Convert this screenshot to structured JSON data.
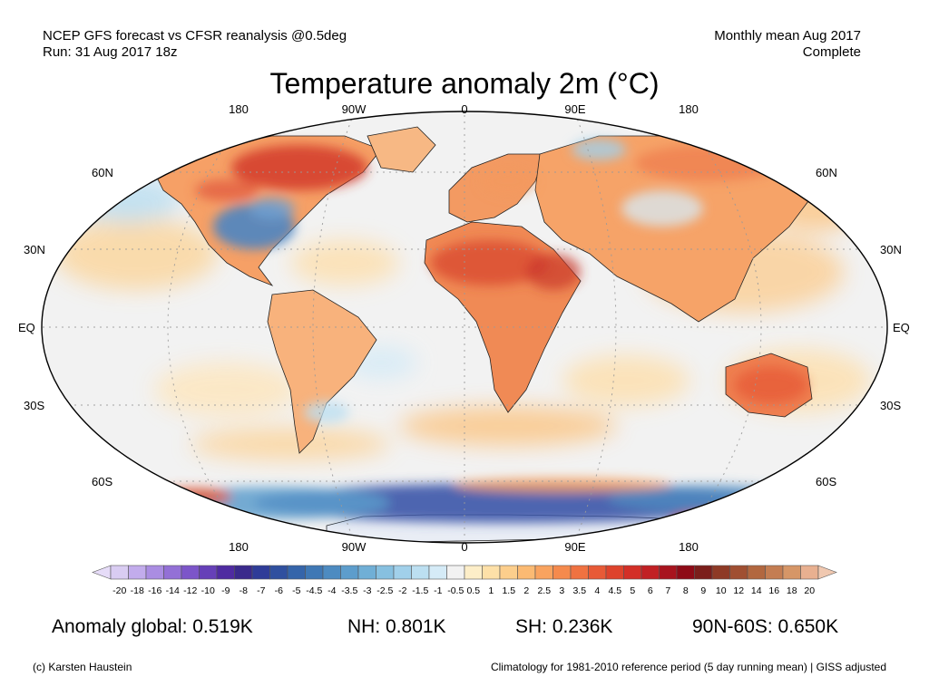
{
  "header": {
    "left_line1": "NCEP GFS forecast vs CFSR reanalysis @0.5deg",
    "left_line2": "Run: 31 Aug 2017 18z",
    "right_line1": "Monthly mean Aug 2017",
    "right_line2": "Complete"
  },
  "title": "Temperature anomaly 2m (°C)",
  "map": {
    "projection": "Robinson",
    "central_meridian": "0",
    "top_lon_labels": [
      "180",
      "90W",
      "0",
      "90E",
      "180"
    ],
    "bottom_lon_labels": [
      "180",
      "90W",
      "0",
      "90E",
      "180"
    ],
    "left_lat_labels": [
      "60N",
      "30N",
      "EQ",
      "30S",
      "60S"
    ],
    "right_lat_labels": [
      "60N",
      "30N",
      "EQ",
      "30S",
      "60S"
    ],
    "ocean_neutral_color": "#f2f2f2",
    "anomaly_regions": [
      {
        "region": "Northern Canada",
        "tone": "strong-warm",
        "color": "#d8402f"
      },
      {
        "region": "Eastern United States",
        "tone": "cool",
        "color": "#5b8fc4"
      },
      {
        "region": "Sahara and Arabia",
        "tone": "warm",
        "color": "#e2643f"
      },
      {
        "region": "Europe and Russia",
        "tone": "warm",
        "color": "#f3a46c"
      },
      {
        "region": "Australia",
        "tone": "warm",
        "color": "#ee7e51"
      },
      {
        "region": "Southern Ocean",
        "tone": "strong-cool",
        "color": "#3a55a8"
      },
      {
        "region": "Antarctic coast sectors",
        "tone": "warm",
        "color": "#e45a3a"
      }
    ]
  },
  "colorbar": {
    "labels": [
      "-20",
      "-18",
      "-16",
      "-14",
      "-12",
      "-10",
      "-9",
      "-8",
      "-7",
      "-6",
      "-5",
      "-4.5",
      "-4",
      "-3.5",
      "-3",
      "-2.5",
      "-2",
      "-1.5",
      "-1",
      "-0.5",
      "0.5",
      "1",
      "1.5",
      "2",
      "2.5",
      "3",
      "3.5",
      "4",
      "4.5",
      "5",
      "6",
      "7",
      "8",
      "9",
      "10",
      "12",
      "14",
      "16",
      "18",
      "20"
    ],
    "colors": [
      "#d9ccf2",
      "#c2acec",
      "#aa8de2",
      "#9370d6",
      "#7c55c9",
      "#6640b8",
      "#4f2ba1",
      "#3a2a8c",
      "#2f3c98",
      "#30509f",
      "#3565aa",
      "#3f78b5",
      "#4d8bc1",
      "#5d9dcc",
      "#70afd6",
      "#87c0e0",
      "#a1d0ea",
      "#bcdff1",
      "#d5ebf7",
      "#f2f2f2",
      "#fdeec8",
      "#fde0a8",
      "#fcce8c",
      "#fbba73",
      "#f9a35f",
      "#f58a4d",
      "#f07241",
      "#e85a36",
      "#de432c",
      "#d32f27",
      "#c12024",
      "#a8141e",
      "#8e0b17",
      "#7b1e1b",
      "#8e3a26",
      "#a04f32",
      "#b2673f",
      "#c47d52",
      "#d69667",
      "#e8b090"
    ],
    "under_color": "#e6dcf8",
    "over_color": "#f0c8b0"
  },
  "stats": {
    "global": "Anomaly global: 0.519K",
    "nh": "NH: 0.801K",
    "sh": "SH: 0.236K",
    "arctic": "90N-60S: 0.650K"
  },
  "footer": {
    "credit": "(c) Karsten Haustein",
    "climatology": "Climatology for 1981-2010 reference period (5 day running mean) | GISS adjusted"
  }
}
